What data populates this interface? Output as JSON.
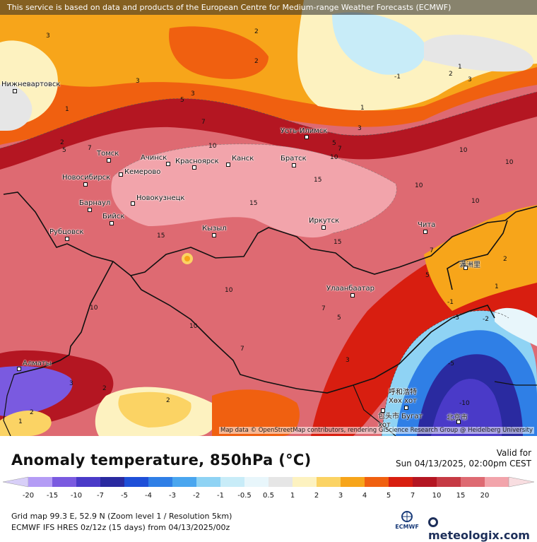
{
  "banner": "This service is based on data and products of the European Centre for Medium-range Weather Forecasts (ECMWF)",
  "attribution": "Map data © OpenStreetMap contributors, rendering GIScience Research Group @ Heidelberg University",
  "title": "Anomaly temperature, 850hPa (°C)",
  "valid_label": "Valid for",
  "valid_date": "Sun 04/13/2025, 02:00pm CEST",
  "grid_info": "Grid map 99.3 E, 52.9 N (Zoom level 1 / Resolution 5km)",
  "model_info": "ECMWF IFS HRES 0z/12z (15 days) from 04/13/2025/00z",
  "ecmwf_logo": "ECMWF",
  "brand": "meteologix.com",
  "legend": {
    "ticks": [
      "-20",
      "-15",
      "-10",
      "-7",
      "-5",
      "-4",
      "-3",
      "-2",
      "-1",
      "-0.5",
      "0.5",
      "1",
      "2",
      "3",
      "4",
      "5",
      "7",
      "10",
      "15",
      "20"
    ],
    "colors": [
      "#b49cf5",
      "#7a5ae0",
      "#4a3ac8",
      "#2a2aa0",
      "#1e4fd8",
      "#2f7fe6",
      "#4aa6ef",
      "#8fd3f4",
      "#c8ecf8",
      "#e8f6fb",
      "#e6e6e6",
      "#fdf2c0",
      "#fbd364",
      "#f7a51a",
      "#f06010",
      "#d81e10",
      "#b41622",
      "#c63a44",
      "#de6a72",
      "#f2a4ab"
    ]
  },
  "cities": [
    {
      "name": "Нижневартовск",
      "icon": "city-marker"
    },
    {
      "name": "Томск",
      "icon": "city-marker"
    },
    {
      "name": "Ачинск",
      "icon": "city-marker"
    },
    {
      "name": "Красноярск",
      "icon": "city-marker"
    },
    {
      "name": "Канск",
      "icon": "city-marker"
    },
    {
      "name": "Братск",
      "icon": "city-marker"
    },
    {
      "name": "Усть-Илимск",
      "icon": "city-marker"
    },
    {
      "name": "Новосибирск",
      "icon": "city-marker"
    },
    {
      "name": "Кемерово",
      "icon": "city-marker"
    },
    {
      "name": "Барнаул",
      "icon": "city-marker"
    },
    {
      "name": "Новокузнецк",
      "icon": "city-marker"
    },
    {
      "name": "Бийск",
      "icon": "city-marker"
    },
    {
      "name": "Рубцовск",
      "icon": "city-marker"
    },
    {
      "name": "Кызыл",
      "icon": "city-marker"
    },
    {
      "name": "Иркутск",
      "icon": "city-marker"
    },
    {
      "name": "Чита",
      "icon": "city-marker"
    },
    {
      "name": "Улаанбаатар",
      "icon": "city-marker"
    },
    {
      "name": "满洲里",
      "icon": "city-marker"
    },
    {
      "name": "Алматы",
      "icon": "city-marker"
    },
    {
      "name": "呼和浩特 Хөх хот",
      "icon": "city-marker"
    },
    {
      "name": "包头市 Бугат хот",
      "icon": "city-marker"
    },
    {
      "name": "北京市",
      "icon": "city-marker"
    }
  ],
  "contour_labels": [
    "1",
    "2",
    "3",
    "5",
    "7",
    "10",
    "15",
    "-1",
    "-2",
    "-3",
    "-5",
    "-10"
  ]
}
